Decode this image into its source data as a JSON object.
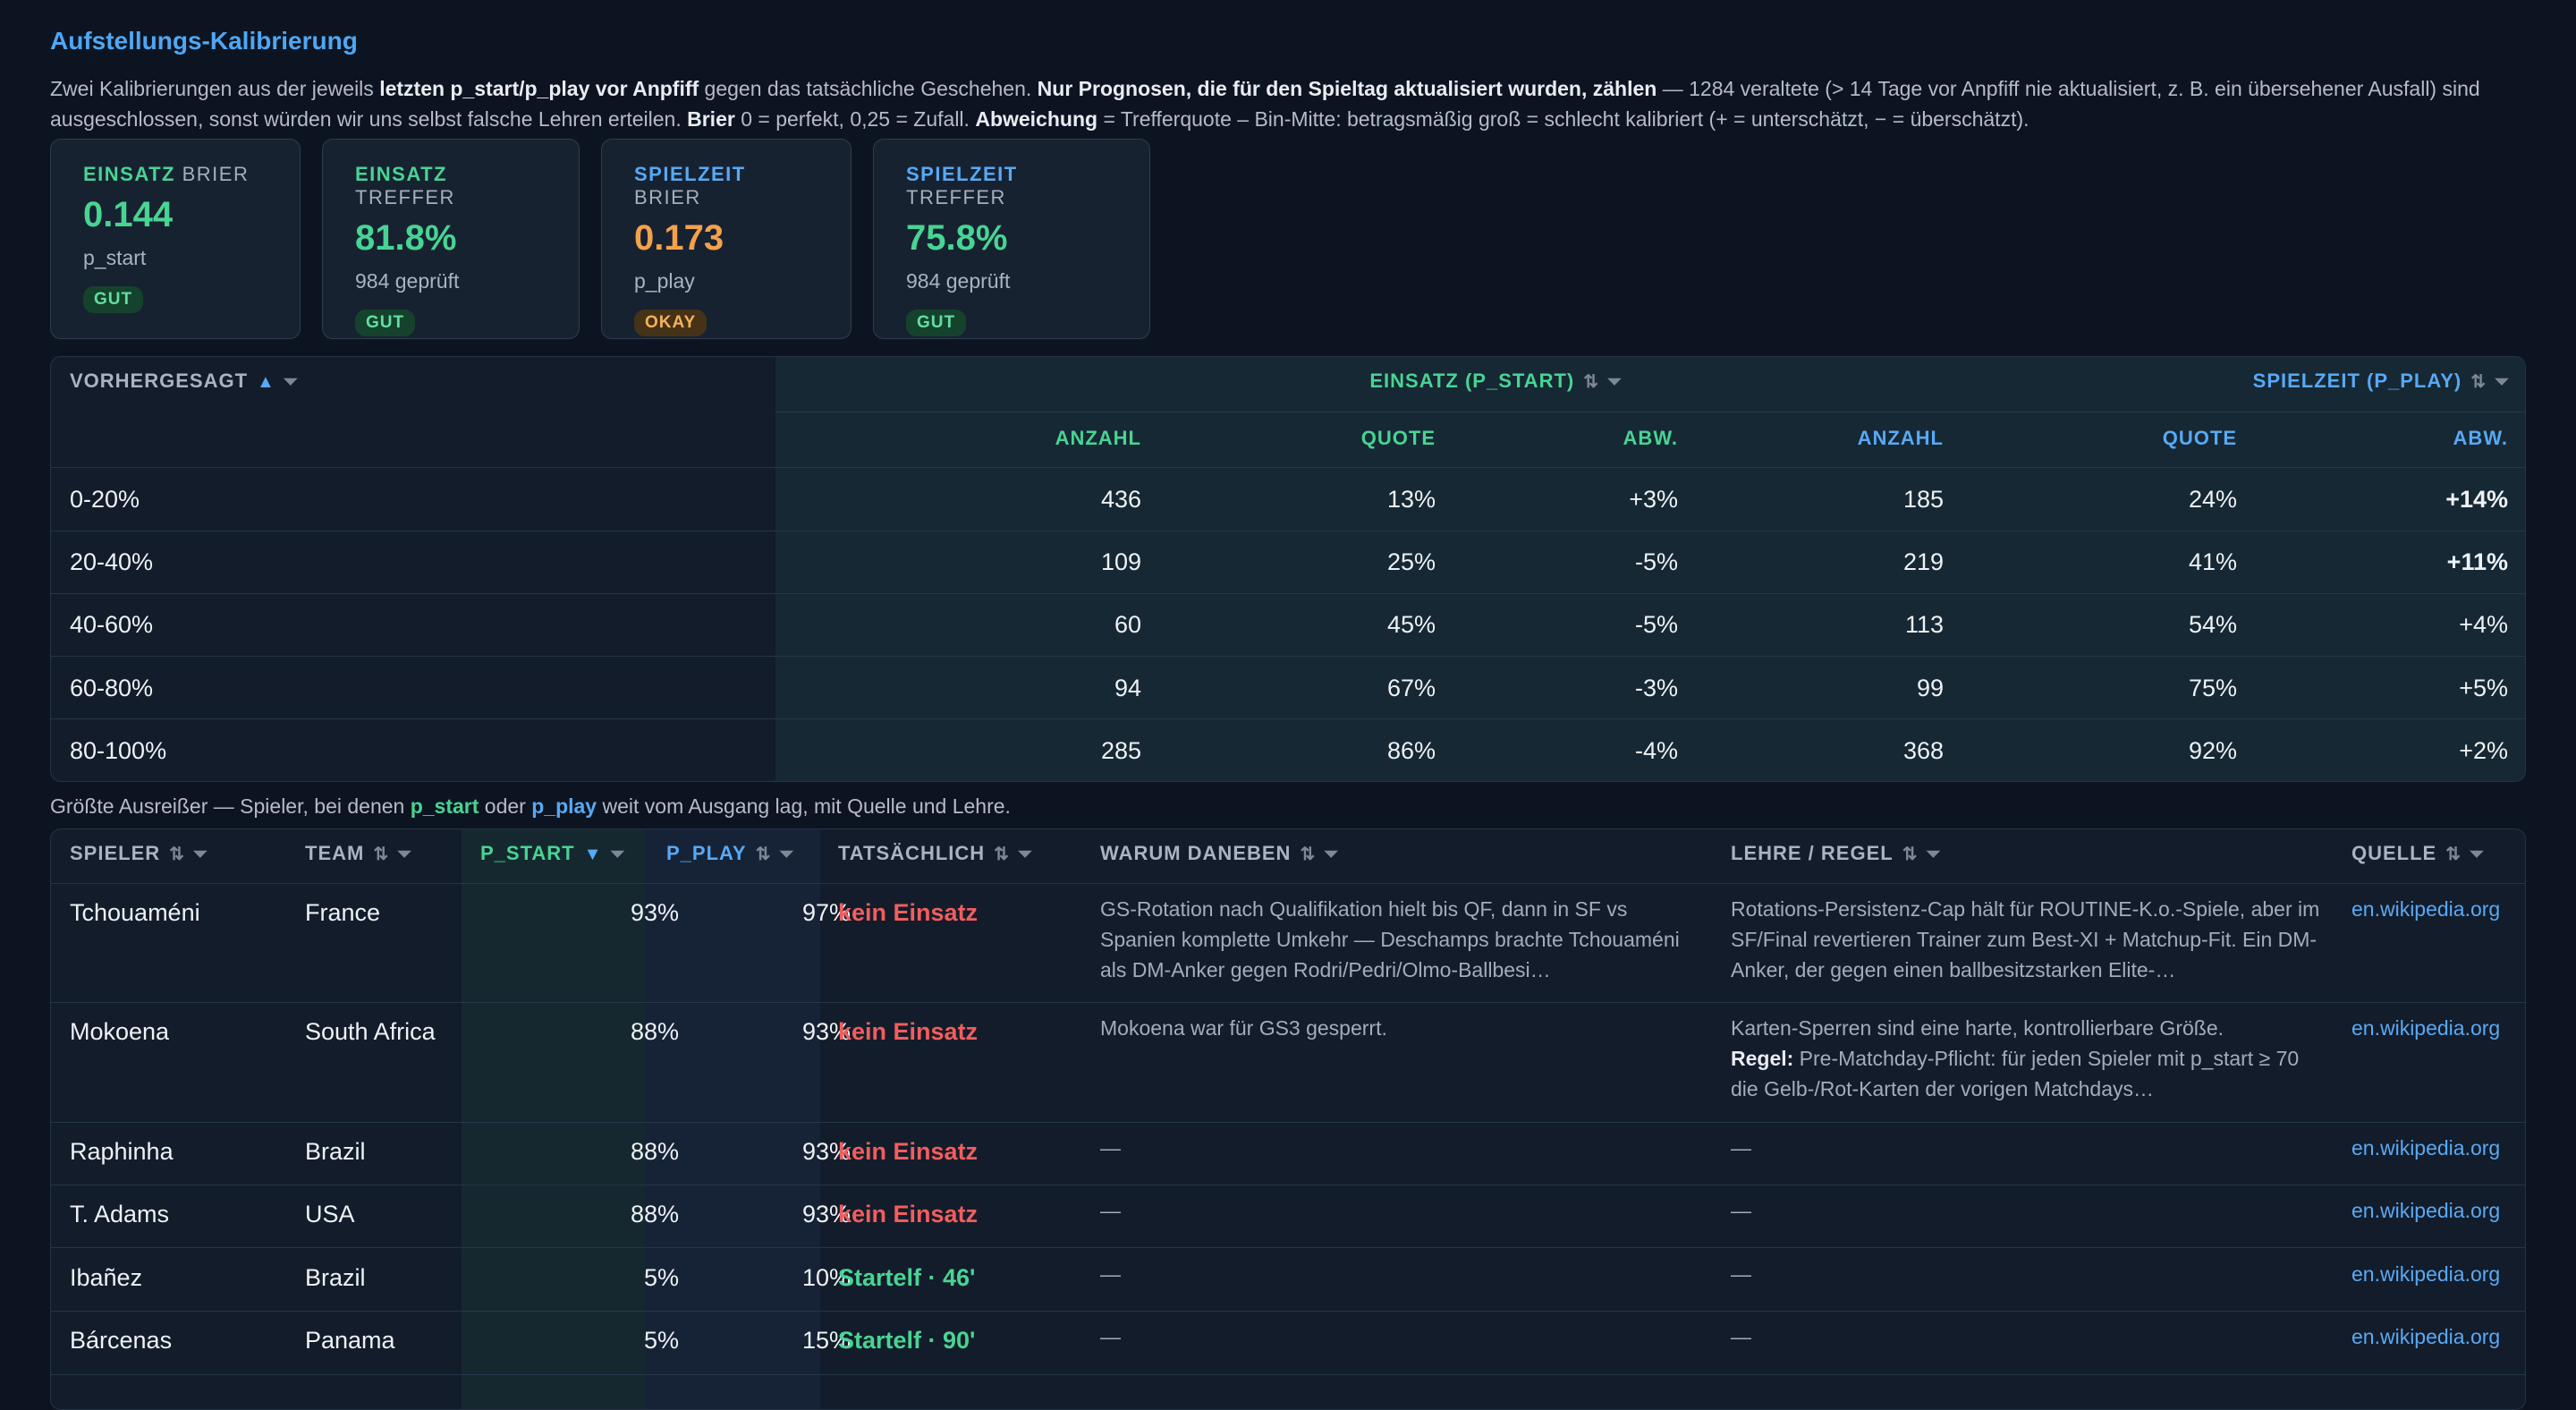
{
  "title": "Aufstellungs-Kalibrierung",
  "intro": {
    "p1": "Zwei Kalibrierungen aus der jeweils ",
    "b1": "letzten p_start/p_play vor Anpfiff",
    "p2": " gegen das tatsächliche Geschehen. ",
    "b2": "Nur Prognosen, die für den Spieltag aktualisiert wurden, zählen",
    "p3": " — 1284 veraltete (> 14 Tage vor Anpfiff nie aktualisiert, z. B. ein übersehener Ausfall) sind ausgeschlossen, sonst würden wir uns selbst falsche Lehren erteilen. ",
    "b3": "Brier",
    "p4": " 0 = perfekt, 0,25 = Zufall. ",
    "b4": "Abweichung",
    "p5": " = Trefferquote – Bin-Mitte: betragsmäßig groß = schlecht kalibriert (+ = unterschätzt, − = überschätzt)."
  },
  "cards": [
    {
      "key": "EINSATZ",
      "label": "BRIER",
      "value": "0.144",
      "sub": "p_start",
      "badge": "GUT",
      "color": "#48d493"
    },
    {
      "key": "EINSATZ",
      "label": "TREFFER",
      "value": "81.8%",
      "sub": "984 geprüft",
      "badge": "GUT",
      "color": "#48d493"
    },
    {
      "key": "SPIELZEIT",
      "label": "BRIER",
      "value": "0.173",
      "sub": "p_play",
      "badge": "OKAY",
      "color": "#f3a14c"
    },
    {
      "key": "SPIELZEIT",
      "label": "TREFFER",
      "value": "75.8%",
      "sub": "984 geprüft",
      "badge": "GUT",
      "color": "#48d493"
    }
  ],
  "calibration": {
    "col_predicted": "VORHERGESAGT",
    "group_start": "EINSATZ (P_START)",
    "group_play": "SPIELZEIT (P_PLAY)",
    "sub_headers": [
      "ANZAHL",
      "QUOTE",
      "ABW.",
      "ANZAHL",
      "QUOTE",
      "ABW."
    ],
    "rows": [
      {
        "bin": "0-20%",
        "s_n": "436",
        "s_q": "13%",
        "s_a": "+3%",
        "p_n": "185",
        "p_q": "24%",
        "p_a": "+14%"
      },
      {
        "bin": "20-40%",
        "s_n": "109",
        "s_q": "25%",
        "s_a": "-5%",
        "p_n": "219",
        "p_q": "41%",
        "p_a": "+11%"
      },
      {
        "bin": "40-60%",
        "s_n": "60",
        "s_q": "45%",
        "s_a": "-5%",
        "p_n": "113",
        "p_q": "54%",
        "p_a": "+4%"
      },
      {
        "bin": "60-80%",
        "s_n": "94",
        "s_q": "67%",
        "s_a": "-3%",
        "p_n": "99",
        "p_q": "75%",
        "p_a": "+5%"
      },
      {
        "bin": "80-100%",
        "s_n": "285",
        "s_q": "86%",
        "s_a": "-4%",
        "p_n": "368",
        "p_q": "92%",
        "p_a": "+2%"
      }
    ]
  },
  "outliers_intro": {
    "p1": "Größte Ausreißer — Spieler, bei denen ",
    "k1": "p_start",
    "p2": " oder ",
    "k2": "p_play",
    "p3": " weit vom Ausgang lag, mit Quelle und Lehre."
  },
  "players_table": {
    "headers": [
      "SPIELER",
      "TEAM",
      "P_START",
      "P_PLAY",
      "TATSÄCHLICH",
      "WARUM DANEBEN",
      "LEHRE / REGEL",
      "QUELLE"
    ],
    "rows": [
      {
        "player": "Tchouaméni",
        "team": "France",
        "p_start": "93%",
        "p_play": "97%",
        "actual": "kein Einsatz",
        "actual_kind": "miss",
        "why": "GS-Rotation nach Qualifikation hielt bis QF, dann in SF vs Spanien komplette Umkehr — Deschamps brachte Tchouaméni als DM-Anker gegen Rodri/Pedri/Olmo-Ballbesi…",
        "lesson_pre": "",
        "lesson": "Rotations-Persistenz-Cap hält für ROUTINE-K.o.-Spiele, aber im SF/Final revertieren Trainer zum Best-XI + Matchup-Fit. Ein DM-Anker, der gegen einen ballbesitzstarken Elite-…",
        "source": "en.wikipedia.org"
      },
      {
        "player": "Mokoena",
        "team": "South Africa",
        "p_start": "88%",
        "p_play": "93%",
        "actual": "kein Einsatz",
        "actual_kind": "miss",
        "why": "Mokoena war für GS3 gesperrt.",
        "lesson_pre": "Karten-Sperren sind eine harte, kontrollierbare Größe.",
        "lesson_b": "Regel:",
        "lesson": " Pre-Matchday-Pflicht: für jeden Spieler mit p_start ≥ 70 die Gelb-/Rot-Karten der vorigen Matchdays…",
        "source": "en.wikipedia.org"
      },
      {
        "player": "Raphinha",
        "team": "Brazil",
        "p_start": "88%",
        "p_play": "93%",
        "actual": "kein Einsatz",
        "actual_kind": "miss",
        "why": "—",
        "lesson_pre": "",
        "lesson": "—",
        "source": "en.wikipedia.org"
      },
      {
        "player": "T. Adams",
        "team": "USA",
        "p_start": "88%",
        "p_play": "93%",
        "actual": "kein Einsatz",
        "actual_kind": "miss",
        "why": "—",
        "lesson_pre": "",
        "lesson": "—",
        "source": "en.wikipedia.org"
      },
      {
        "player": "Ibañez",
        "team": "Brazil",
        "p_start": "5%",
        "p_play": "10%",
        "actual": "Startelf · 46'",
        "actual_kind": "hit",
        "why": "—",
        "lesson_pre": "",
        "lesson": "—",
        "source": "en.wikipedia.org"
      },
      {
        "player": "Bárcenas",
        "team": "Panama",
        "p_start": "5%",
        "p_play": "15%",
        "actual": "Startelf · 90'",
        "actual_kind": "hit",
        "why": "—",
        "lesson_pre": "",
        "lesson": "—",
        "source": "en.wikipedia.org"
      }
    ]
  },
  "colors": {
    "accent_blue": "#58a9f5",
    "green": "#48d493",
    "orange": "#f3a14c",
    "red": "#f25d5d",
    "background": "#0d1421"
  },
  "icons": {
    "sort": "sort-icon",
    "filter": "filter-icon",
    "sort_asc": "sort-asc-icon",
    "sort_desc": "sort-desc-icon"
  }
}
